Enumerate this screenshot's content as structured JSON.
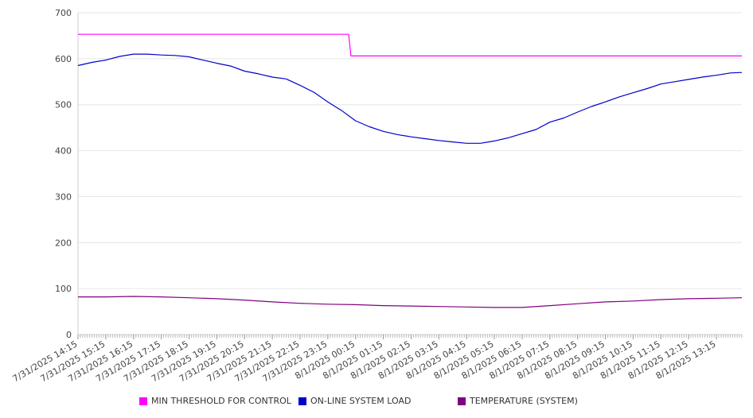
{
  "chart_data": {
    "type": "line",
    "title": "",
    "xlabel": "",
    "ylabel": "",
    "ylim": [
      0,
      700
    ],
    "yticks": [
      0,
      100,
      200,
      300,
      400,
      500,
      600,
      700
    ],
    "grid": true,
    "legend_position": "bottom",
    "x_tick_labels": [
      "7/31/2025 14:15",
      "7/31/2025 15:15",
      "7/31/2025 16:15",
      "7/31/2025 17:15",
      "7/31/2025 18:15",
      "7/31/2025 19:15",
      "7/31/2025 20:15",
      "7/31/2025 21:15",
      "7/31/2025 22:15",
      "7/31/2025 23:15",
      "8/1/2025 00:15",
      "8/1/2025 01:15",
      "8/1/2025 02:15",
      "8/1/2025 03:15",
      "8/1/2025 04:15",
      "8/1/2025 05:15",
      "8/1/2025 06:15",
      "8/1/2025 07:15",
      "8/1/2025 08:15",
      "8/1/2025 09:15",
      "8/1/2025 10:15",
      "8/1/2025 11:15",
      "8/1/2025 12:15",
      "8/1/2025 13:15"
    ],
    "x_start": "7/31/2025 14:15",
    "x_end": "8/1/2025 14:10",
    "x_interval_minutes": 5,
    "series": [
      {
        "name": "MIN THRESHOLD FOR CONTROL",
        "color": "#ff00ff",
        "points": [
          [
            "7/31/2025 14:15",
            653
          ],
          [
            "8/1/2025 00:00",
            653
          ],
          [
            "8/1/2025 00:05",
            606
          ],
          [
            "8/1/2025 14:10",
            606
          ]
        ]
      },
      {
        "name": "ON-LINE SYSTEM LOAD",
        "color": "#0000cc",
        "points": [
          [
            "7/31/2025 14:15",
            585
          ],
          [
            "7/31/2025 14:45",
            592
          ],
          [
            "7/31/2025 15:15",
            597
          ],
          [
            "7/31/2025 15:45",
            605
          ],
          [
            "7/31/2025 16:15",
            610
          ],
          [
            "7/31/2025 16:45",
            610
          ],
          [
            "7/31/2025 17:15",
            608
          ],
          [
            "7/31/2025 17:45",
            607
          ],
          [
            "7/31/2025 18:15",
            604
          ],
          [
            "7/31/2025 18:45",
            597
          ],
          [
            "7/31/2025 19:15",
            590
          ],
          [
            "7/31/2025 19:45",
            584
          ],
          [
            "7/31/2025 20:15",
            573
          ],
          [
            "7/31/2025 20:45",
            567
          ],
          [
            "7/31/2025 21:15",
            560
          ],
          [
            "7/31/2025 21:45",
            556
          ],
          [
            "7/31/2025 22:15",
            542
          ],
          [
            "7/31/2025 22:45",
            527
          ],
          [
            "7/31/2025 23:15",
            506
          ],
          [
            "7/31/2025 23:45",
            487
          ],
          [
            "8/1/2025 00:15",
            465
          ],
          [
            "8/1/2025 00:45",
            452
          ],
          [
            "8/1/2025 01:15",
            442
          ],
          [
            "8/1/2025 01:45",
            435
          ],
          [
            "8/1/2025 02:15",
            430
          ],
          [
            "8/1/2025 02:45",
            426
          ],
          [
            "8/1/2025 03:15",
            422
          ],
          [
            "8/1/2025 03:45",
            419
          ],
          [
            "8/1/2025 04:15",
            416
          ],
          [
            "8/1/2025 04:45",
            416
          ],
          [
            "8/1/2025 05:15",
            421
          ],
          [
            "8/1/2025 05:45",
            428
          ],
          [
            "8/1/2025 06:15",
            437
          ],
          [
            "8/1/2025 06:45",
            446
          ],
          [
            "8/1/2025 07:15",
            462
          ],
          [
            "8/1/2025 07:45",
            471
          ],
          [
            "8/1/2025 08:15",
            484
          ],
          [
            "8/1/2025 08:45",
            496
          ],
          [
            "8/1/2025 09:15",
            506
          ],
          [
            "8/1/2025 09:45",
            517
          ],
          [
            "8/1/2025 10:15",
            526
          ],
          [
            "8/1/2025 10:45",
            535
          ],
          [
            "8/1/2025 11:15",
            545
          ],
          [
            "8/1/2025 11:45",
            550
          ],
          [
            "8/1/2025 12:15",
            555
          ],
          [
            "8/1/2025 12:45",
            560
          ],
          [
            "8/1/2025 13:15",
            564
          ],
          [
            "8/1/2025 13:45",
            569
          ],
          [
            "8/1/2025 14:10",
            570
          ]
        ]
      },
      {
        "name": "TEMPERATURE (SYSTEM)",
        "color": "#800080",
        "points": [
          [
            "7/31/2025 14:15",
            82
          ],
          [
            "7/31/2025 15:15",
            82
          ],
          [
            "7/31/2025 16:15",
            83
          ],
          [
            "7/31/2025 17:15",
            82
          ],
          [
            "7/31/2025 18:15",
            80
          ],
          [
            "7/31/2025 19:15",
            78
          ],
          [
            "7/31/2025 20:15",
            75
          ],
          [
            "7/31/2025 21:15",
            71
          ],
          [
            "7/31/2025 22:15",
            68
          ],
          [
            "7/31/2025 23:15",
            66
          ],
          [
            "8/1/2025 00:15",
            65
          ],
          [
            "8/1/2025 01:15",
            63
          ],
          [
            "8/1/2025 02:15",
            62
          ],
          [
            "8/1/2025 03:15",
            61
          ],
          [
            "8/1/2025 04:15",
            60
          ],
          [
            "8/1/2025 05:15",
            59
          ],
          [
            "8/1/2025 06:15",
            59
          ],
          [
            "8/1/2025 07:15",
            63
          ],
          [
            "8/1/2025 08:15",
            67
          ],
          [
            "8/1/2025 09:15",
            71
          ],
          [
            "8/1/2025 10:15",
            73
          ],
          [
            "8/1/2025 11:15",
            76
          ],
          [
            "8/1/2025 12:15",
            78
          ],
          [
            "8/1/2025 13:15",
            79
          ],
          [
            "8/1/2025 14:10",
            80
          ]
        ]
      }
    ]
  }
}
